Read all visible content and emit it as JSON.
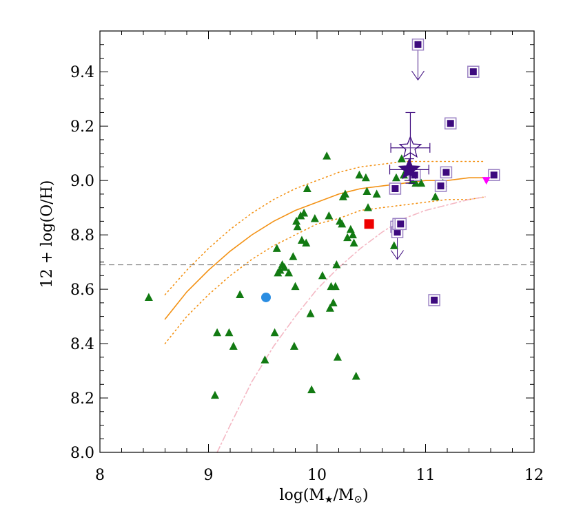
{
  "chart_data": {
    "type": "scatter",
    "xlabel_parts": [
      "log(M",
      "★",
      "/M",
      "⊙",
      ")"
    ],
    "ylabel": "12 + log(O/H)",
    "xlim": [
      8,
      12
    ],
    "ylim": [
      8.0,
      9.55
    ],
    "x_ticks": [
      8,
      9,
      10,
      11,
      12
    ],
    "x_tick_labels": [
      "8",
      "9",
      "10",
      "11",
      "12"
    ],
    "y_ticks": [
      8.0,
      8.2,
      8.4,
      8.6,
      8.8,
      9.0,
      9.2,
      9.4
    ],
    "y_tick_labels": [
      "8.0",
      "8.2",
      "8.4",
      "8.6",
      "8.8",
      "9.0",
      "9.2",
      "9.4"
    ],
    "grid": false,
    "hline": {
      "y": 8.69,
      "style": "dashed",
      "color": "#808080"
    },
    "series": [
      {
        "marker": "triangle-up",
        "color": "#127a12",
        "points": [
          [
            8.45,
            8.57
          ],
          [
            9.06,
            8.21
          ],
          [
            9.08,
            8.44
          ],
          [
            9.19,
            8.44
          ],
          [
            9.23,
            8.39
          ],
          [
            9.29,
            8.58
          ],
          [
            9.52,
            8.34
          ],
          [
            9.61,
            8.44
          ],
          [
            9.63,
            8.75
          ],
          [
            9.64,
            8.66
          ],
          [
            9.66,
            8.67
          ],
          [
            9.68,
            8.69
          ],
          [
            9.7,
            8.68
          ],
          [
            9.74,
            8.66
          ],
          [
            9.78,
            8.72
          ],
          [
            9.79,
            8.39
          ],
          [
            9.8,
            8.61
          ],
          [
            9.81,
            8.85
          ],
          [
            9.82,
            8.83
          ],
          [
            9.85,
            8.87
          ],
          [
            9.86,
            8.78
          ],
          [
            9.88,
            8.88
          ],
          [
            9.9,
            8.77
          ],
          [
            9.91,
            8.97
          ],
          [
            9.94,
            8.51
          ],
          [
            9.95,
            8.23
          ],
          [
            9.98,
            8.86
          ],
          [
            10.05,
            8.65
          ],
          [
            10.09,
            9.09
          ],
          [
            10.11,
            8.87
          ],
          [
            10.12,
            8.53
          ],
          [
            10.13,
            8.61
          ],
          [
            10.15,
            8.55
          ],
          [
            10.17,
            8.61
          ],
          [
            10.18,
            8.69
          ],
          [
            10.19,
            8.35
          ],
          [
            10.21,
            8.85
          ],
          [
            10.23,
            8.84
          ],
          [
            10.24,
            8.94
          ],
          [
            10.26,
            8.95
          ],
          [
            10.28,
            8.79
          ],
          [
            10.31,
            8.82
          ],
          [
            10.33,
            8.8
          ],
          [
            10.34,
            8.77
          ],
          [
            10.36,
            8.28
          ],
          [
            10.39,
            9.02
          ],
          [
            10.45,
            9.01
          ],
          [
            10.46,
            8.96
          ],
          [
            10.47,
            8.9
          ],
          [
            10.55,
            8.95
          ],
          [
            10.71,
            8.76
          ],
          [
            10.73,
            9.01
          ],
          [
            10.78,
            9.08
          ],
          [
            10.8,
            9.02
          ],
          [
            10.85,
            9.06
          ],
          [
            10.88,
            9.0
          ],
          [
            10.91,
            8.99
          ],
          [
            10.96,
            8.99
          ],
          [
            11.09,
            8.94
          ],
          [
            11.16,
            8.99
          ]
        ]
      },
      {
        "marker": "boxed-square",
        "color": "#3d0a7e",
        "points": [
          [
            10.72,
            8.97
          ],
          [
            10.73,
            8.83
          ],
          [
            10.74,
            8.81
          ],
          [
            10.75,
            8.84
          ],
          [
            10.77,
            8.84
          ],
          [
            10.9,
            9.02
          ],
          [
            10.93,
            9.5
          ],
          [
            11.08,
            8.56
          ],
          [
            11.14,
            8.98
          ],
          [
            11.19,
            9.03
          ],
          [
            11.23,
            9.21
          ],
          [
            11.44,
            9.4
          ],
          [
            11.63,
            9.02
          ]
        ]
      },
      {
        "marker": "circle",
        "color": "#2a8de2",
        "points": [
          [
            9.53,
            8.57
          ]
        ]
      },
      {
        "marker": "filled-square",
        "color": "#ee0000",
        "points": [
          [
            10.48,
            8.84
          ]
        ]
      },
      {
        "marker": "triangle-down",
        "color": "#ff00ff",
        "points": [
          [
            11.56,
            9.0
          ]
        ]
      },
      {
        "marker": "open-star",
        "color": "#3d0a7e",
        "points": [
          [
            10.86,
            9.12
          ]
        ],
        "x_err": 0.18,
        "y_err": 0.13
      },
      {
        "marker": "filled-star",
        "color": "#3d0a7e",
        "points": [
          [
            10.85,
            9.04
          ]
        ],
        "x_err": 0.18,
        "y_err": 0.04
      }
    ],
    "upper_limits": [
      {
        "x": 10.93,
        "y_from": 9.5,
        "y_to": 9.37
      },
      {
        "x": 10.74,
        "y_from": 8.83,
        "y_to": 8.71
      }
    ],
    "curves": [
      {
        "style": "solid",
        "color": "#f39215",
        "points": [
          [
            8.6,
            8.49
          ],
          [
            8.8,
            8.59
          ],
          [
            9.0,
            8.67
          ],
          [
            9.2,
            8.74
          ],
          [
            9.4,
            8.8
          ],
          [
            9.6,
            8.85
          ],
          [
            9.8,
            8.89
          ],
          [
            10.0,
            8.92
          ],
          [
            10.2,
            8.95
          ],
          [
            10.4,
            8.97
          ],
          [
            10.6,
            8.98
          ],
          [
            10.8,
            8.99
          ],
          [
            11.0,
            9.0
          ],
          [
            11.2,
            9.0
          ],
          [
            11.4,
            9.01
          ],
          [
            11.55,
            9.01
          ]
        ]
      },
      {
        "style": "dotted",
        "color": "#f39215",
        "points": [
          [
            8.6,
            8.58
          ],
          [
            8.8,
            8.67
          ],
          [
            9.0,
            8.75
          ],
          [
            9.2,
            8.82
          ],
          [
            9.4,
            8.88
          ],
          [
            9.6,
            8.93
          ],
          [
            9.8,
            8.97
          ],
          [
            10.0,
            9.0
          ],
          [
            10.2,
            9.03
          ],
          [
            10.4,
            9.05
          ],
          [
            10.6,
            9.06
          ],
          [
            10.8,
            9.07
          ],
          [
            11.0,
            9.07
          ],
          [
            11.2,
            9.07
          ],
          [
            11.4,
            9.07
          ],
          [
            11.55,
            9.07
          ]
        ]
      },
      {
        "style": "dotted",
        "color": "#f39215",
        "points": [
          [
            8.6,
            8.4
          ],
          [
            8.8,
            8.5
          ],
          [
            9.0,
            8.58
          ],
          [
            9.2,
            8.65
          ],
          [
            9.4,
            8.71
          ],
          [
            9.6,
            8.76
          ],
          [
            9.8,
            8.8
          ],
          [
            10.0,
            8.84
          ],
          [
            10.2,
            8.86
          ],
          [
            10.4,
            8.89
          ],
          [
            10.6,
            8.9
          ],
          [
            10.8,
            8.91
          ],
          [
            11.0,
            8.92
          ],
          [
            11.2,
            8.93
          ],
          [
            11.4,
            8.93
          ],
          [
            11.55,
            8.94
          ]
        ]
      },
      {
        "style": "dashdot",
        "color": "#f4b8c4",
        "points": [
          [
            9.08,
            8.0
          ],
          [
            9.2,
            8.1
          ],
          [
            9.4,
            8.26
          ],
          [
            9.6,
            8.39
          ],
          [
            9.8,
            8.5
          ],
          [
            10.0,
            8.6
          ],
          [
            10.2,
            8.68
          ],
          [
            10.4,
            8.75
          ],
          [
            10.6,
            8.81
          ],
          [
            10.8,
            8.86
          ],
          [
            11.0,
            8.89
          ],
          [
            11.2,
            8.91
          ],
          [
            11.4,
            8.93
          ],
          [
            11.55,
            8.94
          ]
        ]
      }
    ]
  }
}
